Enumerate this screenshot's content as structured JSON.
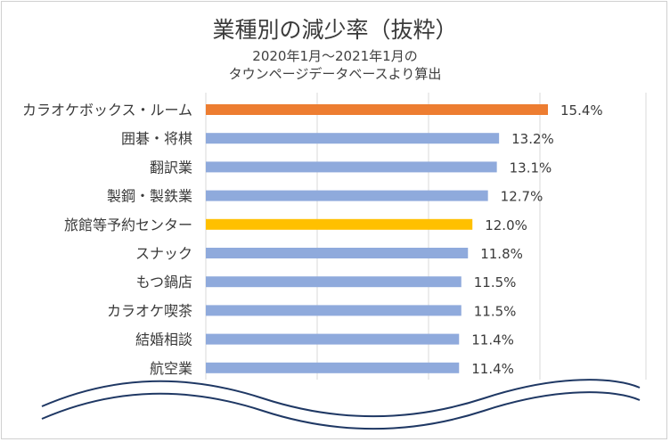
{
  "chart_data": {
    "type": "bar",
    "orientation": "horizontal",
    "title": "業種別の減少率（抜粋）",
    "subtitle_line1": "2020年1月～2021年1月の",
    "subtitle_line2": "タウンページデータベースより算出",
    "categories": [
      "カラオケボックス・ルーム",
      "囲碁・将棋",
      "翻訳業",
      "製鋼・製鉄業",
      "旅館等予約センター",
      "スナック",
      "もつ鍋店",
      "カラオケ喫茶",
      "結婚相談",
      "航空業"
    ],
    "values": [
      15.4,
      13.2,
      13.1,
      12.7,
      12.0,
      11.8,
      11.5,
      11.5,
      11.4,
      11.4
    ],
    "data_labels": [
      "15.4%",
      "13.2%",
      "13.1%",
      "12.7%",
      "12.0%",
      "11.8%",
      "11.5%",
      "11.5%",
      "11.4%",
      "11.4%"
    ],
    "bar_colors": [
      "#ed7d31",
      "#8faadc",
      "#8faadc",
      "#8faadc",
      "#ffc000",
      "#8faadc",
      "#8faadc",
      "#8faadc",
      "#8faadc",
      "#8faadc"
    ],
    "axis_break": true,
    "grid": true,
    "legend": "none"
  }
}
